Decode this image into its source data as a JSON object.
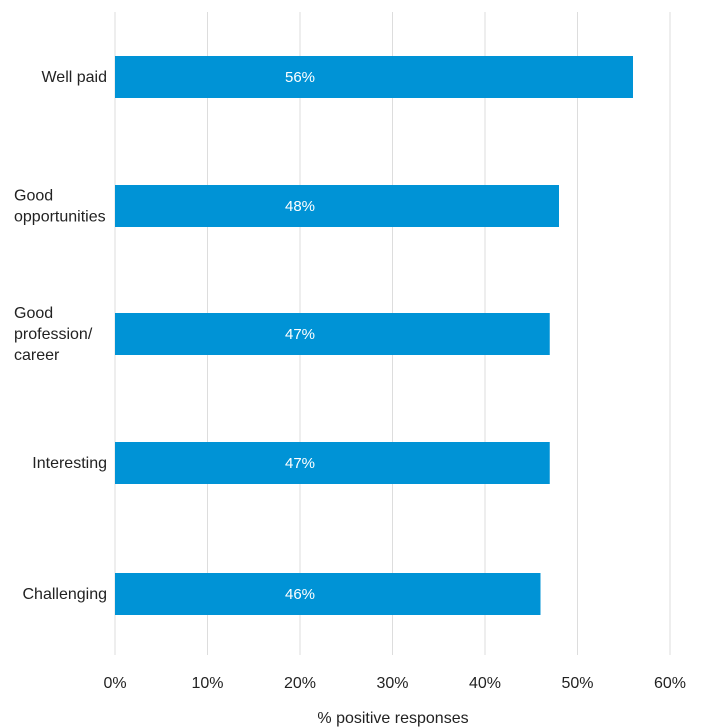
{
  "chart_data": {
    "type": "bar",
    "orientation": "horizontal",
    "categories": [
      [
        "Well paid"
      ],
      [
        "Good",
        "opportunities"
      ],
      [
        "Good",
        "profession/",
        "career"
      ],
      [
        "Interesting"
      ],
      [
        "Challenging"
      ]
    ],
    "values": [
      56,
      48,
      47,
      47,
      46
    ],
    "data_labels": [
      "56%",
      "48%",
      "47%",
      "47%",
      "46%"
    ],
    "xlim": [
      0,
      60
    ],
    "x_ticks": [
      0,
      10,
      20,
      30,
      40,
      50,
      60
    ],
    "x_tick_labels": [
      "0%",
      "10%",
      "20%",
      "30%",
      "40%",
      "50%",
      "60%"
    ],
    "xlabel": "% positive responses",
    "ylabel": "",
    "title": "",
    "grid": "vertical",
    "legend": "none",
    "bar_color": "#0093d6",
    "grid_color": "#dddddd"
  }
}
